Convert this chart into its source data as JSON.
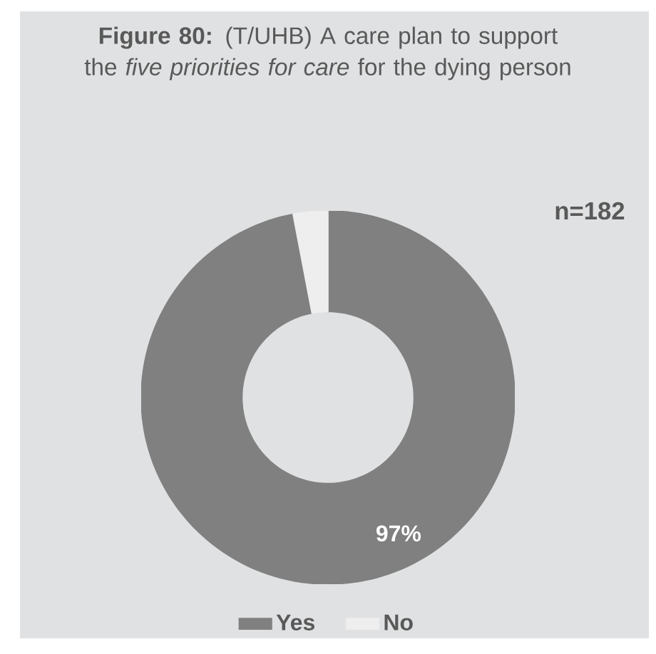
{
  "chart_data": {
    "type": "donut",
    "title": "**Figure 80:** (T/UHB) A care plan to support the *five priorities for care* for the dying person",
    "categories": [
      "Yes",
      "No"
    ],
    "values": [
      97,
      3
    ],
    "colors": [
      "#808080",
      "#eeeeee"
    ],
    "value_labels": [
      "97%",
      null
    ],
    "annotations": [
      "n=182"
    ],
    "legend": "bottom"
  }
}
